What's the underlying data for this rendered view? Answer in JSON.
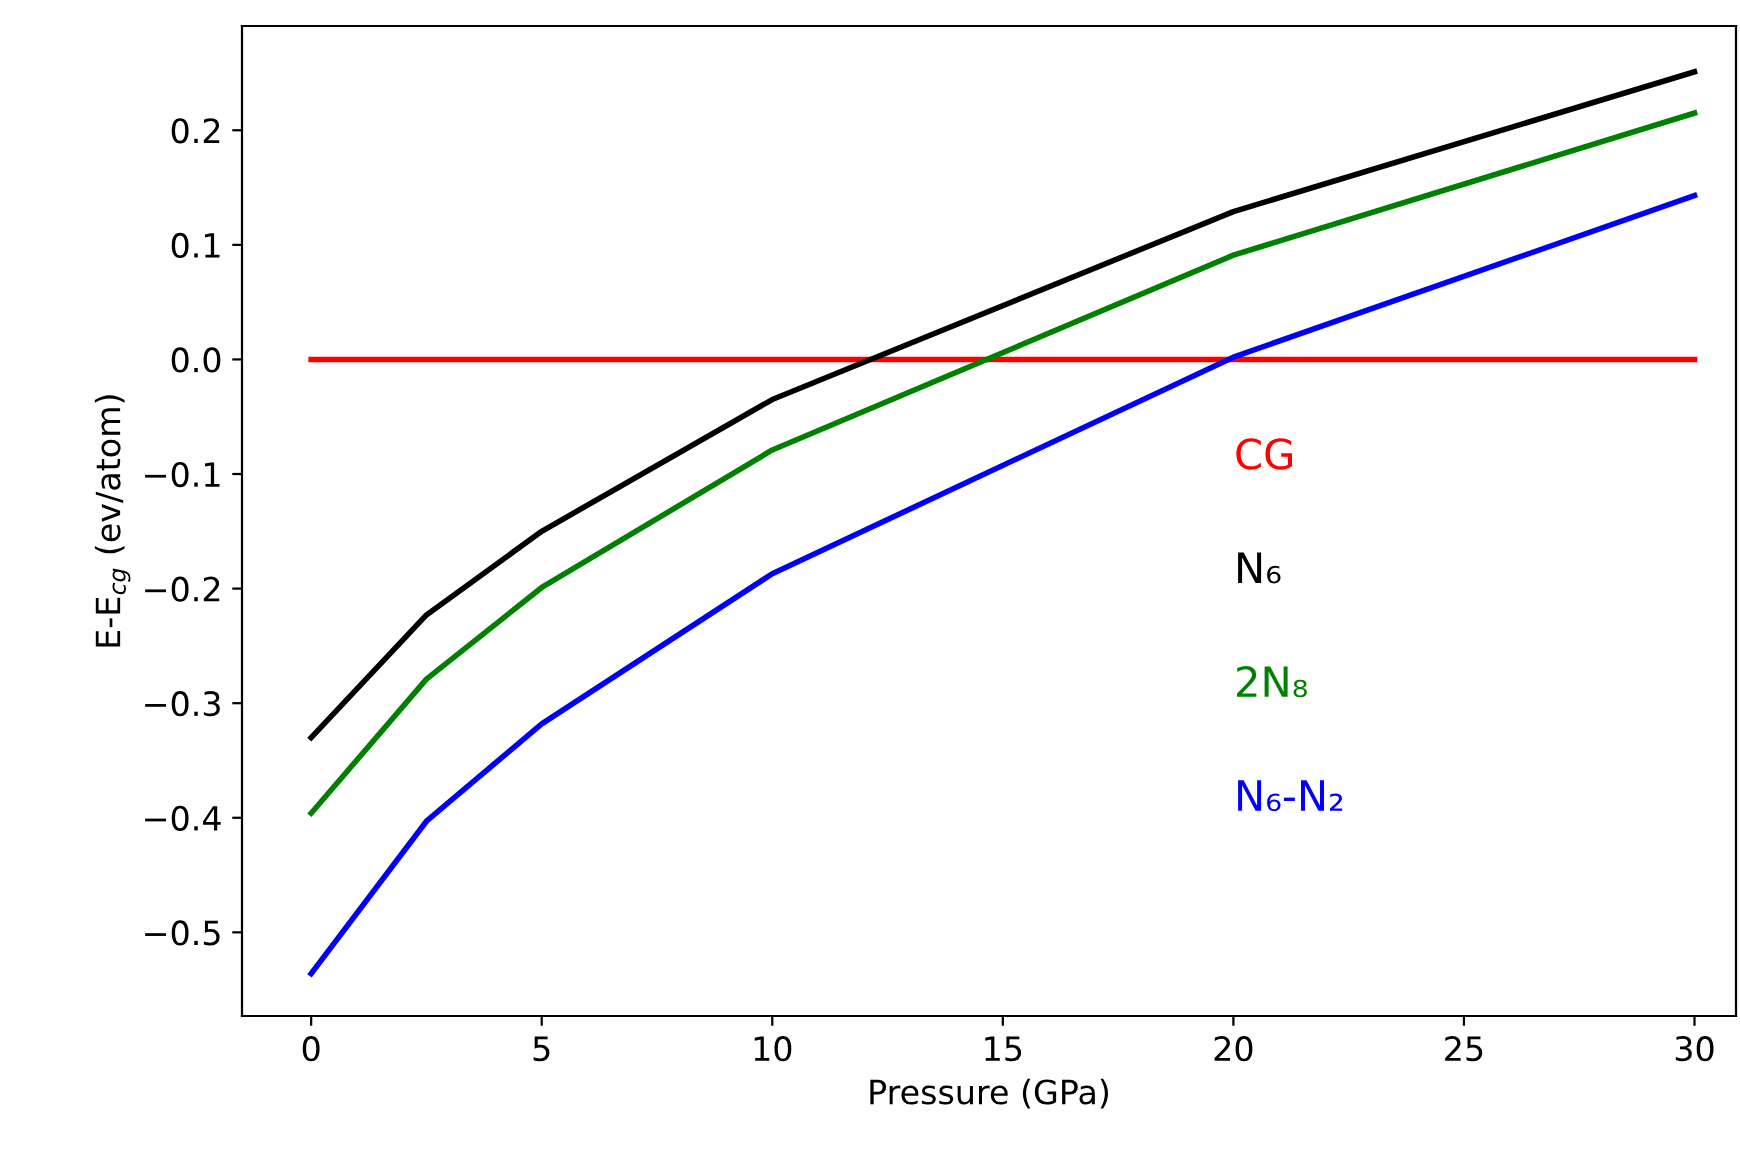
{
  "chart_data": {
    "type": "line",
    "xlabel": "Pressure (GPa)",
    "ylabel": "E-E$_{cg}$ (ev/atom)",
    "x": [
      0,
      2.5,
      5,
      10,
      20,
      30
    ],
    "series": [
      {
        "name": "CG",
        "color": "#ff0000",
        "values": [
          0,
          0,
          0,
          0,
          0,
          0
        ]
      },
      {
        "name": "N₆",
        "color": "#000000",
        "values": [
          -0.33,
          -0.223,
          -0.15,
          -0.035,
          0.129,
          0.251
        ]
      },
      {
        "name": "2N₈",
        "color": "#008000",
        "values": [
          -0.396,
          -0.279,
          -0.199,
          -0.079,
          0.091,
          0.215
        ]
      },
      {
        "name": "N₆-N₂",
        "color": "#0000ff",
        "values": [
          -0.536,
          -0.403,
          -0.318,
          -0.187,
          0.002,
          0.143
        ]
      }
    ],
    "xlim": [
      -1.5,
      30.9
    ],
    "ylim": [
      -0.573,
      0.291
    ],
    "xticks": [
      0,
      5,
      10,
      15,
      20,
      25,
      30
    ],
    "yticks": [
      {
        "value": -0.5,
        "label": "−0.5"
      },
      {
        "value": -0.4,
        "label": "−0.4"
      },
      {
        "value": -0.3,
        "label": "−0.3"
      },
      {
        "value": -0.2,
        "label": "−0.2"
      },
      {
        "value": -0.1,
        "label": "−0.1"
      },
      {
        "value": 0.0,
        "label": "0.0"
      },
      {
        "value": 0.1,
        "label": "0.1"
      },
      {
        "value": 0.2,
        "label": "0.2"
      }
    ],
    "grid": false,
    "legend": false,
    "marker": "none",
    "line_style": "solid"
  }
}
